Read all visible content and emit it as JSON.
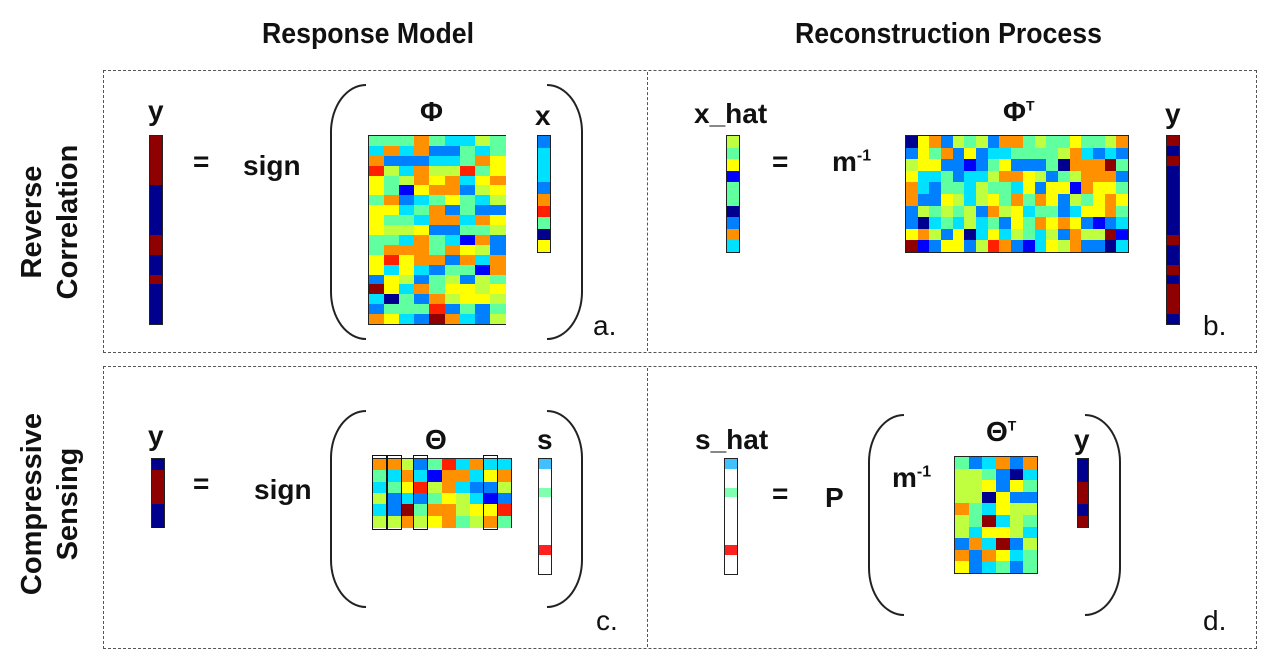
{
  "headers": {
    "response_model": "Response Model",
    "reconstruction": "Reconstruction Process"
  },
  "rows": {
    "top": [
      "Reverse",
      "Correlation"
    ],
    "bottom": [
      "Compressive",
      "Sensing"
    ]
  },
  "panel_a": {
    "y": "y",
    "eq": "=",
    "sign": "sign",
    "matrix": "Φ",
    "x": "x",
    "tag": "a."
  },
  "panel_b": {
    "xhat": "x_hat",
    "eq": "=",
    "m": "m",
    "m_exp": "-1",
    "matrix": "Φ",
    "matrix_exp": "T",
    "y": "y",
    "tag": "b."
  },
  "panel_c": {
    "y": "y",
    "eq": "=",
    "sign": "sign",
    "matrix": "Θ",
    "s": "s",
    "tag": "c."
  },
  "panel_d": {
    "shat": "s_hat",
    "eq": "=",
    "p": "P",
    "m": "m",
    "m_exp": "-1",
    "matrix": "Θ",
    "matrix_exp": "T",
    "y": "y",
    "tag": "d."
  },
  "colors": {
    "jet": [
      "#00008f",
      "#0000ff",
      "#0080ff",
      "#00e0ff",
      "#60ffa0",
      "#c0ff40",
      "#ffff00",
      "#ff9000",
      "#ff2000",
      "#8f0000"
    ]
  }
}
